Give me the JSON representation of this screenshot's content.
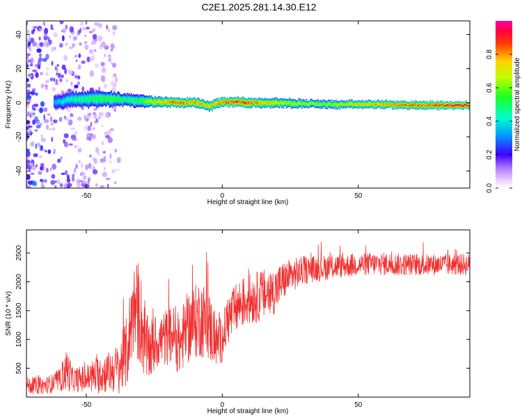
{
  "title": "C2E1.2025.281.14.30.E12",
  "colors": {
    "snr_line": "#f03030",
    "spectrogram_low": "#9a40ff",
    "spectrogram_high": "#ff2020",
    "axis": "#000000"
  },
  "chart_data": [
    {
      "type": "heatmap",
      "title": "",
      "xlabel": "Height of straight line (km)",
      "ylabel": "Frequency (Hz)",
      "xlim": [
        -72,
        91
      ],
      "ylim": [
        -50,
        48
      ],
      "xticks": [
        -50,
        0,
        50
      ],
      "xtick_labels": [
        "-50",
        "0",
        "50"
      ],
      "yticks": [
        -40,
        -20,
        0,
        20,
        40
      ],
      "ytick_labels": [
        "-40",
        "-20",
        "0",
        "20",
        "40"
      ],
      "colorbar": {
        "label": "Normalized spectral amplitude",
        "range": [
          0,
          1
        ],
        "ticks": [
          0,
          0.2,
          0.4,
          0.6,
          0.8
        ],
        "tick_labels": [
          "0.0",
          "0.2",
          "0.4",
          "0.6",
          "0.8"
        ],
        "colormap": "rainbow (violet to magenta)"
      },
      "ridge": {
        "x": [
          -62,
          -55,
          -50,
          -45,
          -40,
          -35,
          -30,
          -25,
          -20,
          -15,
          -10,
          -5,
          0,
          5,
          10,
          15,
          20,
          30,
          40,
          50,
          60,
          70,
          80,
          91
        ],
        "frequency": [
          0,
          2,
          2,
          2.5,
          2,
          1.5,
          1,
          0.5,
          0.5,
          0,
          0,
          -2,
          0.5,
          0.5,
          0,
          0,
          0,
          -0.5,
          -1,
          -1,
          -1,
          -1.5,
          -1.5,
          -1.5
        ],
        "amplitude": [
          0.35,
          0.45,
          0.5,
          0.55,
          0.55,
          0.5,
          0.55,
          0.75,
          0.8,
          0.85,
          0.8,
          0.75,
          0.85,
          0.9,
          0.85,
          0.8,
          0.7,
          0.65,
          0.65,
          0.75,
          0.8,
          0.85,
          0.9,
          0.95
        ],
        "half_width_hz": [
          5,
          5,
          5,
          5,
          4.5,
          4,
          4,
          3.5,
          3,
          3,
          3,
          3,
          3,
          3,
          3,
          3,
          3,
          2.5,
          2.5,
          2.5,
          2.5,
          2.5,
          2.5,
          2.5
        ]
      },
      "noise_region_x": [
        -72,
        -38
      ]
    },
    {
      "type": "line",
      "title": "",
      "xlabel": "Height of straight line (km)",
      "ylabel": "SNR (10 * v/v)",
      "xlim": [
        -72,
        91
      ],
      "ylim": [
        0,
        2900
      ],
      "xticks": [
        -50,
        0,
        50
      ],
      "xtick_labels": [
        "-50",
        "0",
        "50"
      ],
      "yticks": [
        500,
        1000,
        1500,
        2000,
        2500
      ],
      "ytick_labels": [
        "500",
        "1000",
        "1500",
        "2000",
        "2500"
      ],
      "series": [
        {
          "x": [
            -72,
            -65,
            -60,
            -57,
            -55,
            -50,
            -45,
            -42,
            -38,
            -35,
            -33,
            -31,
            -30,
            -28,
            -26,
            -24,
            -22,
            -20,
            -18,
            -16,
            -14,
            -12,
            -10,
            -8,
            -6,
            -4,
            -2,
            0,
            2,
            4,
            6,
            8,
            10,
            12,
            14,
            16,
            18,
            20,
            22,
            25,
            30,
            35,
            40,
            45,
            50,
            55,
            60,
            65,
            70,
            75,
            80,
            85,
            91
          ],
          "y": [
            200,
            200,
            280,
            480,
            300,
            320,
            400,
            430,
            500,
            780,
            1500,
            1500,
            1350,
            820,
            850,
            950,
            1000,
            1050,
            1100,
            850,
            1100,
            1250,
            1300,
            1380,
            1300,
            1150,
            950,
            1000,
            1350,
            1450,
            1600,
            1650,
            1700,
            1720,
            1760,
            1780,
            1800,
            1880,
            2000,
            2100,
            2200,
            2230,
            2260,
            2280,
            2300,
            2310,
            2310,
            2300,
            2300,
            2290,
            2300,
            2300,
            2300
          ],
          "noise_amplitude": [
            150,
            150,
            180,
            400,
            200,
            250,
            350,
            350,
            450,
            650,
            800,
            900,
            850,
            600,
            550,
            450,
            500,
            500,
            500,
            500,
            600,
            650,
            650,
            700,
            650,
            600,
            450,
            400,
            450,
            450,
            450,
            450,
            450,
            450,
            450,
            450,
            420,
            400,
            350,
            300,
            250,
            230,
            220,
            210,
            200,
            200,
            200,
            200,
            190,
            190,
            190,
            190,
            190
          ]
        }
      ]
    }
  ]
}
